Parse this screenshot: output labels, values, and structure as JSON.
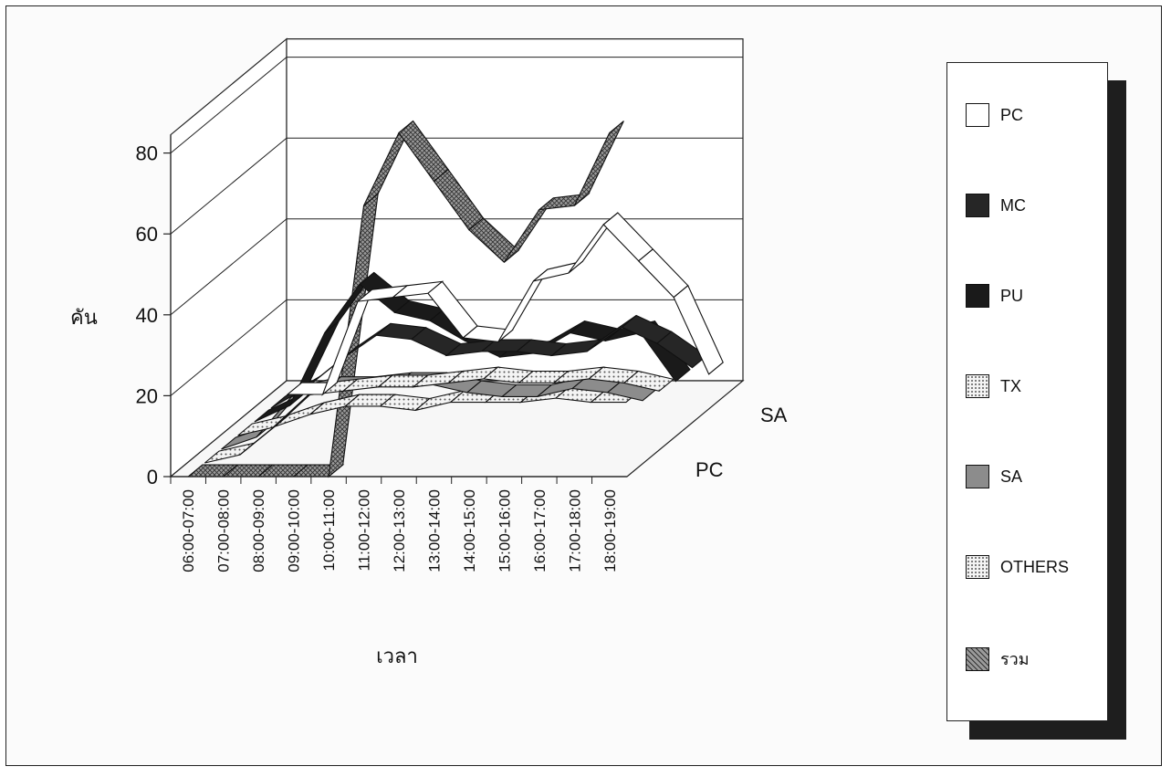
{
  "chart_data": {
    "type": "line",
    "view": "3d",
    "categories": [
      "06:00-07:00",
      "07:00-08:00",
      "08:00-09:00",
      "09:00-10:00",
      "10:00-11:00",
      "11:00-12:00",
      "12:00-13:00",
      "13:00-14:00",
      "14:00-15:00",
      "15:00-16:00",
      "16:00-17:00",
      "17:00-18:00",
      "18:00-19:00"
    ],
    "xlabel": "เวลา",
    "ylabel": "คัน",
    "ylim": [
      0,
      80
    ],
    "yticks": [
      0,
      20,
      40,
      60,
      80
    ],
    "depth_labels": [
      "PC",
      "SA"
    ],
    "grid": true,
    "legend_position": "right",
    "series": [
      {
        "name": "PC",
        "color": "#ffffff",
        "pattern": "none",
        "values": [
          0,
          0,
          23,
          24,
          25,
          14,
          13,
          28,
          30,
          42,
          33,
          24,
          5
        ]
      },
      {
        "name": "MC",
        "color": "#262626",
        "pattern": "none",
        "values": [
          0,
          5,
          12,
          18,
          17,
          13,
          14,
          14,
          13,
          14,
          20,
          16,
          10
        ]
      },
      {
        "name": "PU",
        "color": "#1a1a1a",
        "pattern": "none",
        "values": [
          0,
          4,
          22,
          34,
          27,
          25,
          20,
          16,
          17,
          22,
          20,
          22,
          10
        ]
      },
      {
        "name": "TX",
        "color": "#d0d0d0",
        "pattern": "dots",
        "values": [
          0,
          2,
          10,
          11,
          12,
          12,
          13,
          14,
          13,
          13,
          14,
          13,
          11
        ]
      },
      {
        "name": "SA",
        "color": "#8c8c8c",
        "pattern": "none",
        "values": [
          0,
          3,
          13,
          15,
          15,
          16,
          16,
          14,
          13,
          13,
          15,
          14,
          12
        ]
      },
      {
        "name": "OTHERS",
        "color": "#eeeeee",
        "pattern": "dots",
        "values": [
          0,
          2,
          9,
          12,
          14,
          14,
          13,
          15,
          15,
          15,
          16,
          15,
          15
        ]
      },
      {
        "name": "รวม",
        "color": "#7d7d7d",
        "pattern": "crosshatch",
        "values": [
          0,
          0,
          0,
          0,
          0,
          67,
          85,
          73,
          61,
          53,
          66,
          67,
          85
        ]
      }
    ]
  }
}
